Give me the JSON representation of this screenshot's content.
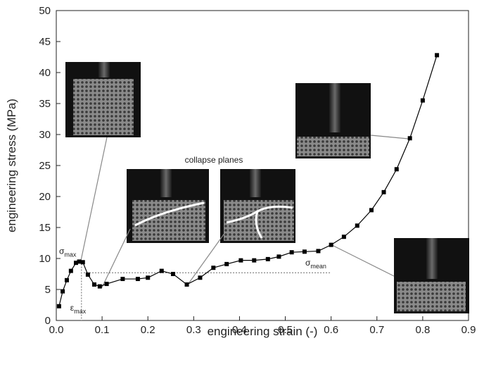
{
  "chart_data": {
    "type": "line",
    "x_label": "engineering strain (-)",
    "y_label": "engineering stress (MPa)",
    "xlim": [
      0,
      0.9
    ],
    "ylim": [
      0,
      50
    ],
    "xticks": [
      {
        "value": 0,
        "label": "0.0"
      },
      0.1,
      0.2,
      0.3,
      0.4,
      0.5,
      0.6,
      0.7,
      0.8,
      0.9
    ],
    "yticks": [
      0,
      5,
      10,
      15,
      20,
      25,
      30,
      35,
      40,
      45,
      50
    ],
    "series": [
      {
        "color": "#000000",
        "x": [
          0.006,
          0.014,
          0.023,
          0.032,
          0.043,
          0.05,
          0.058,
          0.069,
          0.083,
          0.095,
          0.11,
          0.145,
          0.178,
          0.2,
          0.23,
          0.255,
          0.285,
          0.314,
          0.343,
          0.372,
          0.403,
          0.432,
          0.462,
          0.486,
          0.514,
          0.542,
          0.572,
          0.6,
          0.628,
          0.657,
          0.688,
          0.715,
          0.743,
          0.772,
          0.8,
          0.831
        ],
        "values": [
          2.3,
          4.7,
          6.5,
          8.0,
          9.3,
          9.5,
          9.4,
          7.4,
          5.8,
          5.5,
          5.9,
          6.7,
          6.7,
          6.9,
          8.0,
          7.5,
          5.8,
          6.9,
          8.5,
          9.1,
          9.7,
          9.7,
          9.9,
          10.3,
          11.0,
          11.1,
          11.2,
          12.2,
          13.5,
          15.3,
          17.8,
          20.7,
          24.4,
          29.4,
          35.5,
          42.8
        ]
      }
    ],
    "mean_stress": {
      "value": 7.7,
      "from": 0.06,
      "to": 0.6,
      "symbol": "σ",
      "sub": "mean"
    },
    "max_point": {
      "strain": 0.055,
      "stress": 9.6,
      "stress_symbol": "σ",
      "stress_sub": "max",
      "strain_symbol": "ε",
      "strain_sub": "max"
    },
    "annotation": "collapse planes"
  }
}
